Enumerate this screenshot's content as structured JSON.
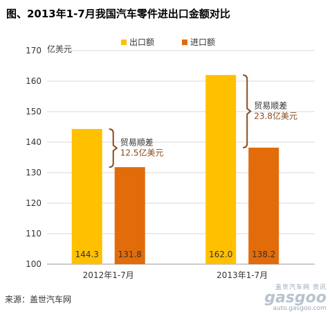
{
  "title": "图、2013年1-7月我国汽车零件进出口金额对比",
  "source": "来源：盖世汽车网",
  "watermark": {
    "top": "盖世汽车网 资讯",
    "logo": "gasgoo",
    "url": "auto.gasgoo.com"
  },
  "colors": {
    "export": "#FFC000",
    "import": "#E26B0A",
    "bracket": "#8B4A1C",
    "axis": "#999999",
    "grid": "#d9d9d9"
  },
  "chart_data": {
    "type": "bar",
    "categories": [
      "2012年1-7月",
      "2013年1-7月"
    ],
    "series": [
      {
        "name": "出口额",
        "values": [
          144.3,
          131.8
        ]
      },
      {
        "name": "进口额",
        "values": [
          162.0,
          138.2
        ]
      }
    ],
    "value_labels": [
      [
        "144.3",
        "131.8"
      ],
      [
        "162.0",
        "138.2"
      ]
    ],
    "ylabel": "亿美元",
    "ylim": [
      100,
      170
    ],
    "yticks": [
      100,
      110,
      120,
      130,
      140,
      150,
      160,
      170
    ],
    "grid": true,
    "legend_position": "top",
    "annotations": [
      {
        "label": "贸易顺差",
        "value_text": "12.5亿美元"
      },
      {
        "label": "贸易顺差",
        "value_text": "23.8亿美元"
      }
    ]
  }
}
